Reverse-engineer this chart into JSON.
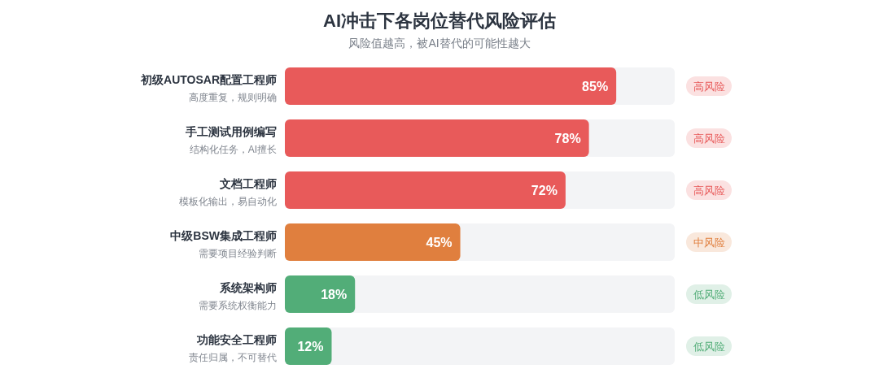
{
  "chart_data": {
    "type": "bar",
    "orientation": "horizontal",
    "title": "AI冲击下各岗位替代风险评估",
    "subtitle": "风险值越高，被AI替代的可能性越大",
    "categories": [
      "初级AUTOSAR配置工程师",
      "手工测试用例编写",
      "文档工程师",
      "中级BSW集成工程师",
      "系统架构师",
      "功能安全工程师"
    ],
    "values": [
      85,
      78,
      72,
      45,
      18,
      12
    ],
    "value_labels": [
      "85%",
      "78%",
      "72%",
      "45%",
      "18%",
      "12%"
    ],
    "colors": [
      "#e85a5a",
      "#e85a5a",
      "#e85a5a",
      "#e07f3e",
      "#52ad78",
      "#52ad78"
    ],
    "xlim": [
      0,
      100
    ],
    "annotations": [
      "高度重复，规则明确",
      "高风险",
      "结构化任务，AI擅长",
      "高风险",
      "模板化输出，易自动化",
      "高风险",
      "需要项目经验判断",
      "中风险",
      "需要系统权衡能力",
      "低风险",
      "责任归属，不可替代",
      "低风险"
    ],
    "tick_labels": "y"
  }
}
